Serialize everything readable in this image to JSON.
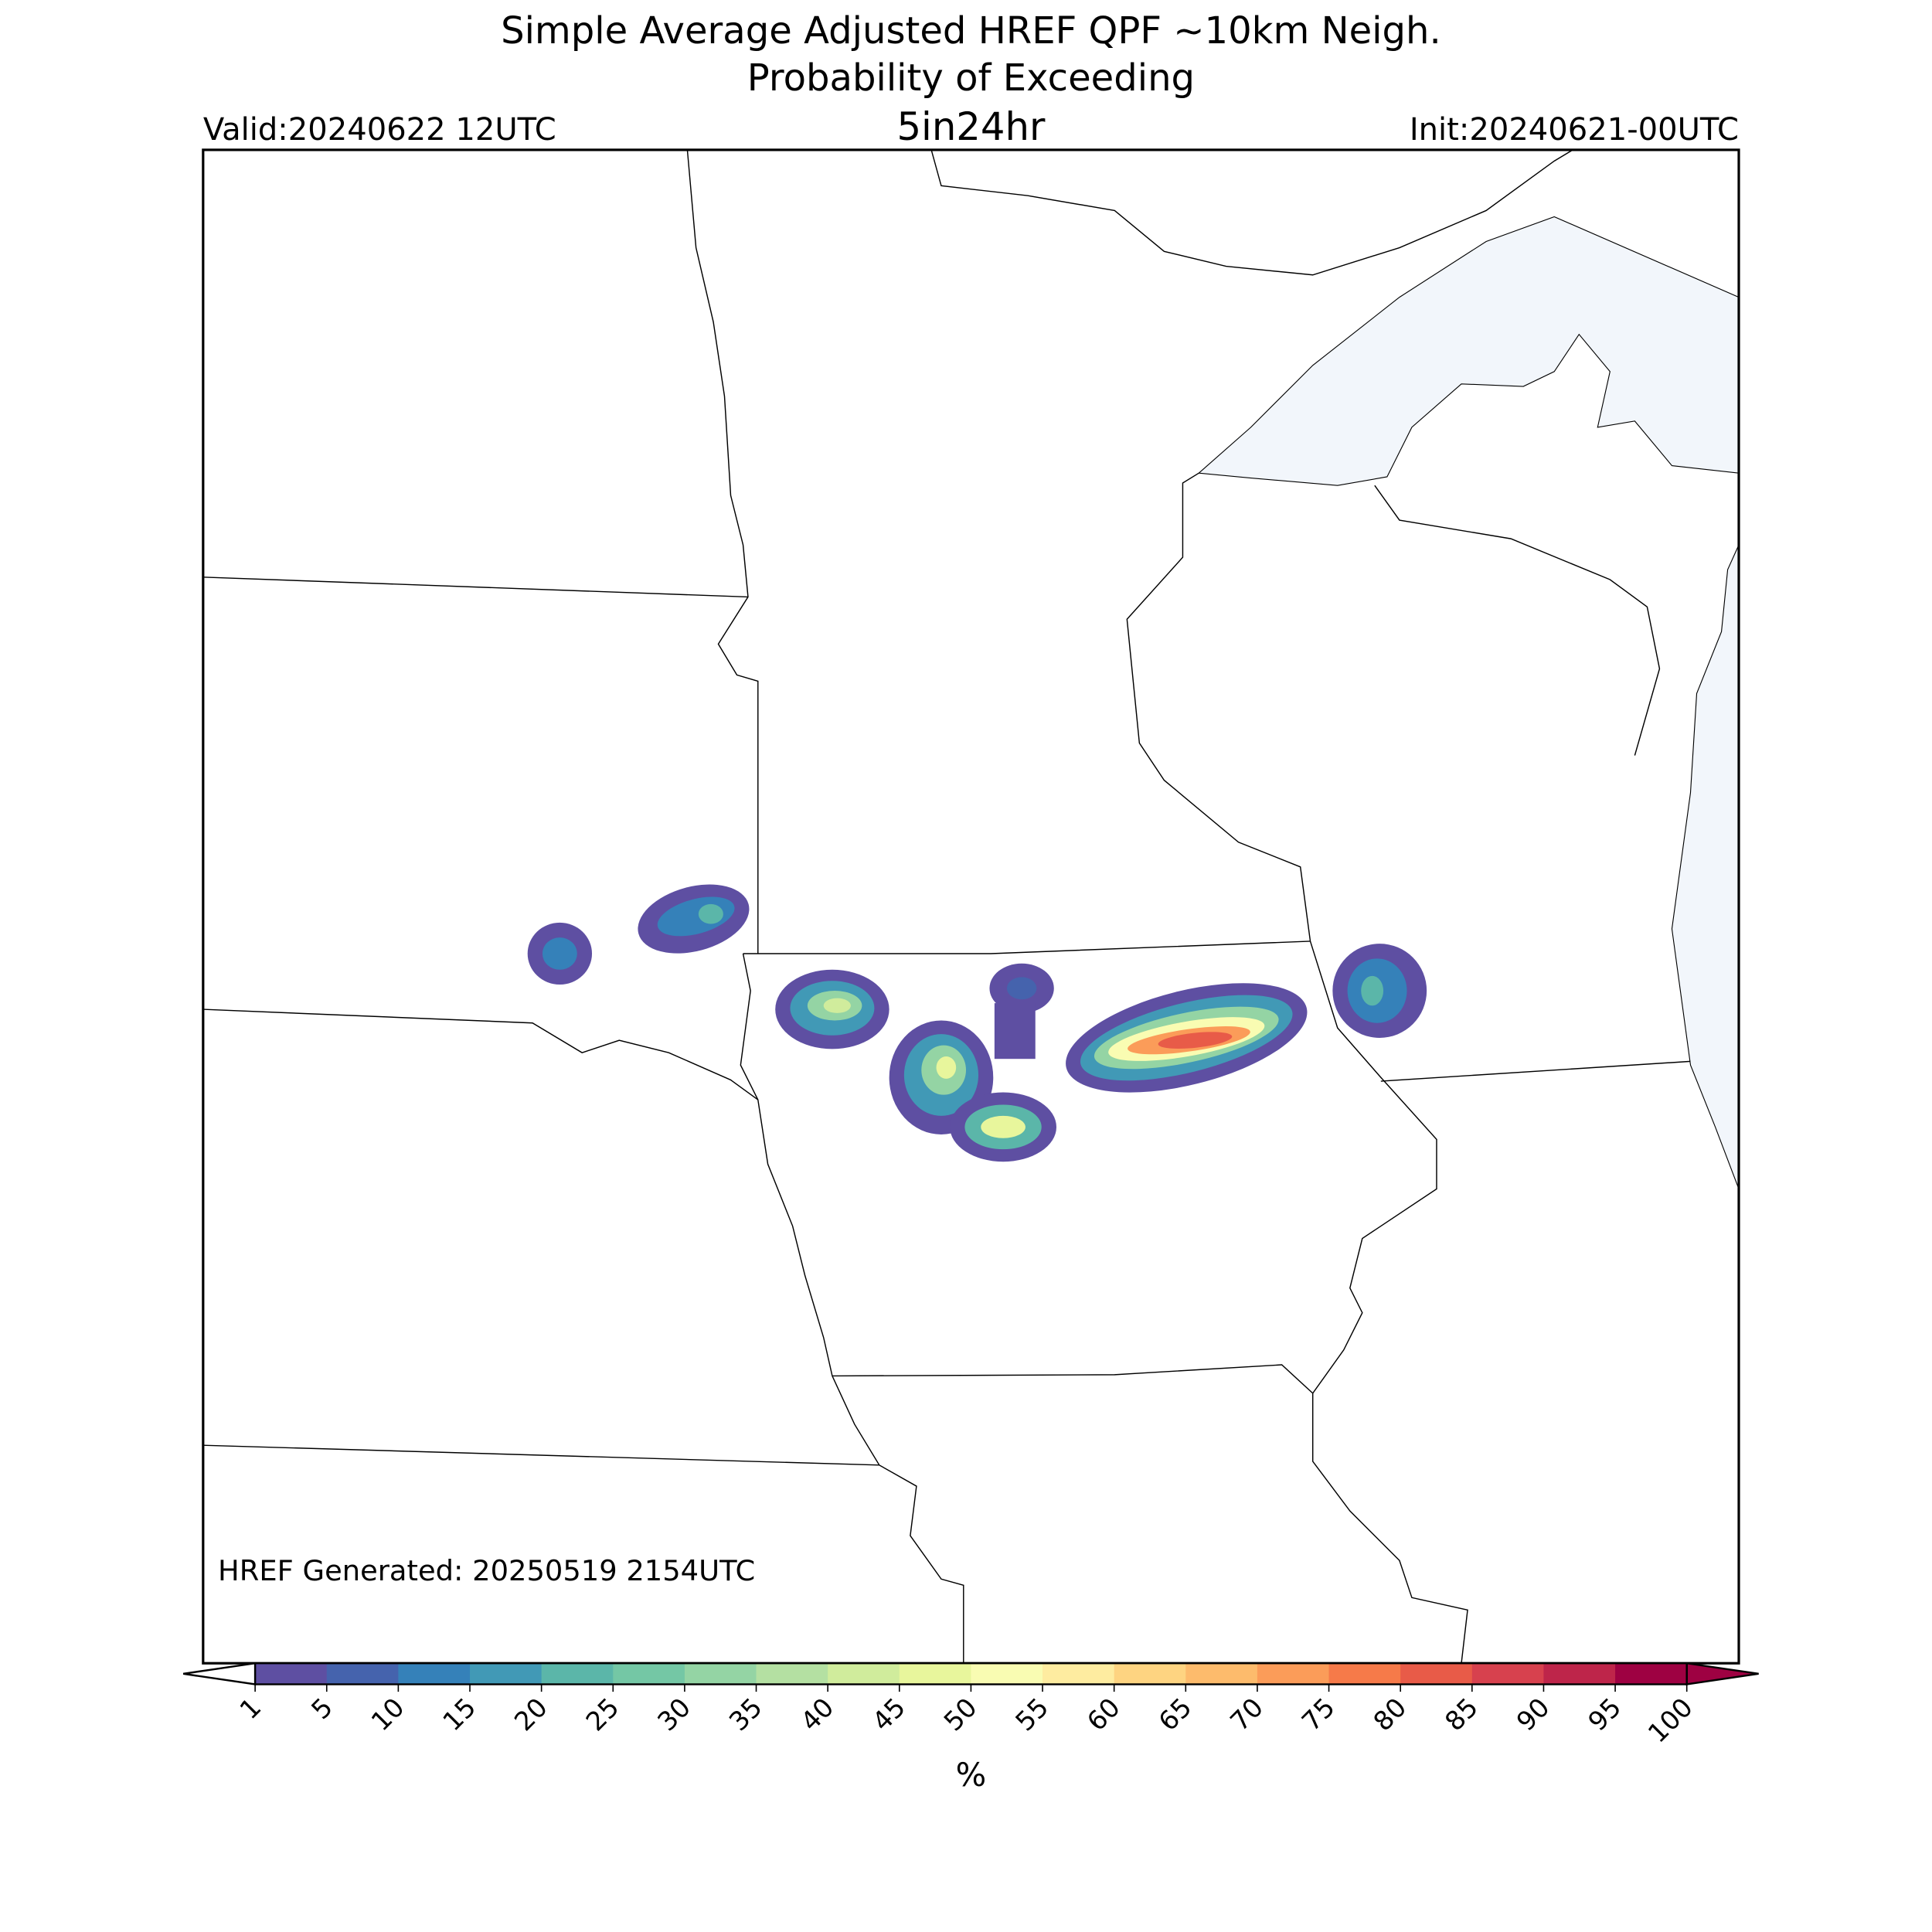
{
  "header": {
    "title_line1": "Simple Average Adjusted HREF QPF ~10km Neigh.",
    "title_line2": "Probability of Exceeding",
    "threshold": "5in24hr",
    "valid": "Valid:20240622 12UTC",
    "init": "Init:20240621-00UTC"
  },
  "footer": {
    "generated": "HREF Generated: 20250519 2154UTC"
  },
  "colorbar": {
    "ticks": [
      1,
      5,
      10,
      15,
      20,
      25,
      30,
      35,
      40,
      45,
      50,
      55,
      60,
      65,
      70,
      75,
      80,
      85,
      90,
      95,
      100
    ],
    "colors": [
      "#5e4fa2",
      "#4563ad",
      "#3581b9",
      "#4199b6",
      "#5bb6a9",
      "#74c7a5",
      "#94d4a4",
      "#b4e0a2",
      "#d0ec9c",
      "#e8f69c",
      "#f9fcb2",
      "#feeca0",
      "#fed481",
      "#fdbb6c",
      "#fb9c59",
      "#f67a49",
      "#e85b48",
      "#d7414e",
      "#be254a",
      "#9e0142"
    ],
    "under_color": "#ffffff",
    "over_color": "#9e0142",
    "label": "%"
  }
}
